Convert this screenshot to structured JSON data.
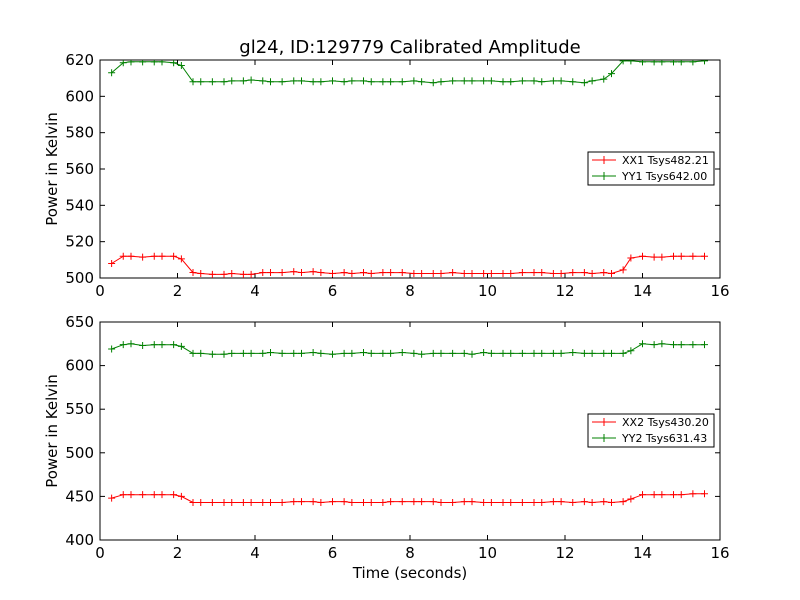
{
  "colors": {
    "red": "#ff0000",
    "green": "#008000",
    "background": "#ffffff",
    "axes": "#000000"
  },
  "chart_data": [
    {
      "type": "line",
      "title": "gl24, ID:129779 Calibrated Amplitude",
      "xlabel": "",
      "ylabel": "Power in Kelvin",
      "xlim": [
        0,
        16
      ],
      "ylim": [
        500,
        620
      ],
      "xticks": [
        0,
        2,
        4,
        6,
        8,
        10,
        12,
        14,
        16
      ],
      "yticks": [
        500,
        520,
        540,
        560,
        580,
        600,
        620
      ],
      "grid": false,
      "legend_position": "center-right",
      "x": [
        0.3,
        0.6,
        0.8,
        1.1,
        1.4,
        1.6,
        1.9,
        2.1,
        2.4,
        2.6,
        2.9,
        3.2,
        3.4,
        3.7,
        3.9,
        4.2,
        4.4,
        4.7,
        5.0,
        5.2,
        5.5,
        5.7,
        6.0,
        6.3,
        6.5,
        6.8,
        7.0,
        7.3,
        7.5,
        7.8,
        8.1,
        8.3,
        8.6,
        8.8,
        9.1,
        9.4,
        9.6,
        9.9,
        10.1,
        10.4,
        10.6,
        10.9,
        11.2,
        11.4,
        11.7,
        11.9,
        12.2,
        12.5,
        12.7,
        13.0,
        13.2,
        13.5,
        13.7,
        14.0,
        14.3,
        14.5,
        14.8,
        15.0,
        15.3,
        15.6
      ],
      "series": [
        {
          "name": "XX1 Tsys482.21",
          "color": "#ff0000",
          "values": [
            508,
            512,
            512,
            511.5,
            512,
            512,
            512,
            510.5,
            503,
            502.5,
            502,
            502,
            502.5,
            502,
            502,
            503,
            503,
            503,
            503.5,
            503,
            503.5,
            503,
            502.5,
            503,
            502.5,
            503,
            502.5,
            503,
            503,
            503,
            502.5,
            502.5,
            502.5,
            502.5,
            503,
            502.5,
            502.5,
            502.5,
            502.5,
            502.5,
            502.5,
            503,
            503,
            503,
            502.5,
            502.5,
            503,
            503,
            502.5,
            503,
            502.5,
            504.5,
            511,
            512,
            511.5,
            511.5,
            512,
            512,
            512,
            512
          ]
        },
        {
          "name": "YY1 Tsys642.00",
          "color": "#008000",
          "values": [
            613,
            618.5,
            619,
            619,
            619,
            619,
            618.5,
            617,
            608,
            608,
            608,
            608,
            608.5,
            608.5,
            609,
            608.5,
            608,
            608,
            608.5,
            608.5,
            608,
            608,
            608.5,
            608,
            608.5,
            608.5,
            608,
            608,
            608,
            608,
            608.5,
            608,
            607.5,
            608,
            608.5,
            608.5,
            608.5,
            608.5,
            608.5,
            608,
            608,
            608.5,
            608.5,
            608,
            608.5,
            608.5,
            608,
            607.5,
            608.5,
            609.5,
            612.5,
            619.5,
            619.5,
            619,
            619,
            619,
            619,
            619,
            619,
            619.5
          ]
        }
      ]
    },
    {
      "type": "line",
      "title": "",
      "xlabel": "Time (seconds)",
      "ylabel": "Power in Kelvin",
      "xlim": [
        0,
        16
      ],
      "ylim": [
        400,
        650
      ],
      "xticks": [
        0,
        2,
        4,
        6,
        8,
        10,
        12,
        14,
        16
      ],
      "yticks": [
        400,
        450,
        500,
        550,
        600,
        650
      ],
      "grid": false,
      "legend_position": "center-right",
      "x": [
        0.3,
        0.6,
        0.8,
        1.1,
        1.4,
        1.6,
        1.9,
        2.1,
        2.4,
        2.6,
        2.9,
        3.2,
        3.4,
        3.7,
        3.9,
        4.2,
        4.4,
        4.7,
        5.0,
        5.2,
        5.5,
        5.7,
        6.0,
        6.3,
        6.5,
        6.8,
        7.0,
        7.3,
        7.5,
        7.8,
        8.1,
        8.3,
        8.6,
        8.8,
        9.1,
        9.4,
        9.6,
        9.9,
        10.1,
        10.4,
        10.6,
        10.9,
        11.2,
        11.4,
        11.7,
        11.9,
        12.2,
        12.5,
        12.7,
        13.0,
        13.2,
        13.5,
        13.7,
        14.0,
        14.3,
        14.5,
        14.8,
        15.0,
        15.3,
        15.6
      ],
      "series": [
        {
          "name": "XX2 Tsys430.20",
          "color": "#ff0000",
          "values": [
            448,
            452,
            452,
            452,
            452,
            452,
            452,
            450,
            443,
            443,
            443,
            443,
            443,
            443,
            443,
            443,
            443,
            443,
            444,
            444,
            444,
            443,
            444,
            444,
            443,
            443,
            443,
            443,
            444,
            444,
            444,
            444,
            444,
            443,
            443,
            444,
            444,
            443,
            443,
            443,
            443,
            443,
            443,
            443,
            444,
            444,
            443,
            444,
            443,
            444,
            443,
            444,
            447,
            452,
            452,
            452,
            452,
            452,
            453,
            453
          ]
        },
        {
          "name": "YY2 Tsys631.43",
          "color": "#008000",
          "values": [
            619,
            624,
            625,
            623,
            624,
            624,
            624,
            622,
            614,
            614,
            613,
            613,
            614,
            614,
            614,
            614,
            615,
            614,
            614,
            614,
            615,
            614,
            613,
            614,
            614,
            615,
            614,
            614,
            614,
            615,
            614,
            613,
            614,
            614,
            614,
            614,
            613,
            615,
            614,
            614,
            614,
            614,
            614,
            614,
            614,
            614,
            615,
            614,
            614,
            614,
            614,
            614,
            617,
            625,
            624,
            625,
            624,
            624,
            624,
            624
          ]
        }
      ]
    }
  ]
}
